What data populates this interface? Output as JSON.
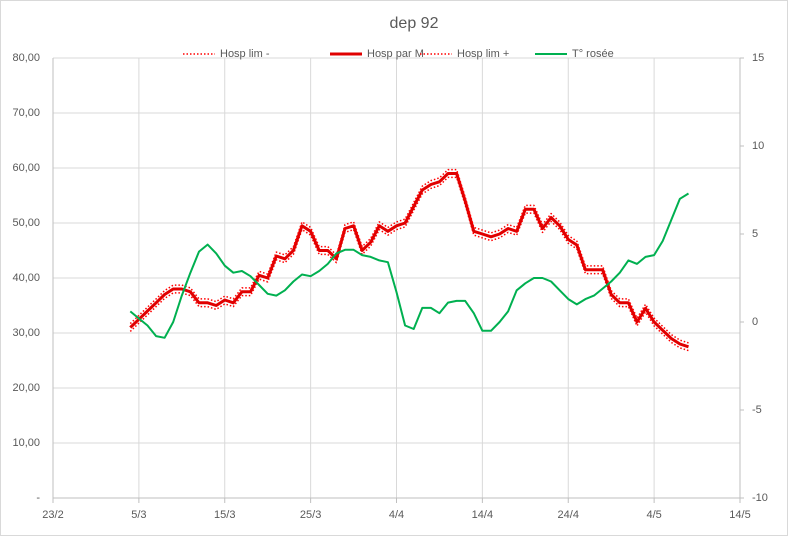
{
  "chart_data": {
    "type": "line",
    "title": "dep  92",
    "categories": [
      "23/2",
      null,
      null,
      null,
      null,
      null,
      null,
      null,
      null,
      null,
      "5/3",
      null,
      null,
      null,
      null,
      null,
      null,
      null,
      null,
      null,
      "15/3",
      null,
      null,
      null,
      null,
      null,
      null,
      null,
      null,
      null,
      "25/3",
      null,
      null,
      null,
      null,
      null,
      null,
      null,
      null,
      null,
      "4/4",
      null,
      null,
      null,
      null,
      null,
      null,
      null,
      null,
      null,
      "14/4",
      null,
      null,
      null,
      null,
      null,
      null,
      null,
      null,
      null,
      "24/4",
      null,
      null,
      null,
      null,
      null,
      null,
      null,
      null,
      null,
      "4/5",
      null,
      null,
      null,
      null,
      null,
      null,
      null,
      null,
      null,
      "14/5"
    ],
    "series": [
      {
        "name": "Hosp lim -",
        "color": "#ff0000",
        "style": "dotted",
        "values": [
          null,
          null,
          null,
          null,
          null,
          null,
          null,
          null,
          null,
          30.3,
          31.8,
          33.3,
          34.8,
          36.3,
          37.3,
          37.3,
          36.8,
          34.8,
          34.8,
          34.3,
          35.3,
          34.8,
          36.8,
          36.8,
          39.8,
          39.3,
          43.3,
          42.8,
          44.3,
          48.8,
          47.8,
          44.3,
          44.3,
          42.8,
          48.3,
          48.8,
          44.3,
          45.8,
          48.8,
          47.8,
          48.8,
          49.3,
          52.3,
          55.3,
          56.3,
          56.8,
          58.3,
          58.3,
          53.3,
          47.8,
          47.3,
          46.8,
          47.3,
          48.3,
          47.8,
          51.8,
          51.8,
          48.3,
          50.3,
          48.8,
          46.3,
          45.3,
          40.8,
          40.8,
          40.8,
          36.3,
          34.8,
          34.8,
          31.3,
          33.8,
          31.3,
          29.8,
          28.3,
          27.3,
          26.8,
          null,
          null,
          null,
          null,
          null,
          null
        ]
      },
      {
        "name": "Hosp par M",
        "color": "#e00000",
        "style": "solid",
        "values": [
          null,
          null,
          null,
          null,
          null,
          null,
          null,
          null,
          null,
          31,
          32.5,
          34,
          35.5,
          37,
          38,
          38,
          37.5,
          35.5,
          35.5,
          35,
          36,
          35.5,
          37.5,
          37.5,
          40.5,
          40,
          44,
          43.5,
          45,
          49.5,
          48.5,
          45,
          45,
          43.5,
          49,
          49.5,
          45,
          46.5,
          49.5,
          48.5,
          49.5,
          50,
          53,
          56,
          57,
          57.5,
          59,
          59,
          54,
          48.5,
          48,
          47.5,
          48,
          49,
          48.5,
          52.5,
          52.5,
          49,
          51,
          49.5,
          47,
          46,
          41.5,
          41.5,
          41.5,
          37,
          35.5,
          35.5,
          32,
          34.5,
          32,
          30.5,
          29,
          28,
          27.5,
          null,
          null,
          null,
          null,
          null,
          null
        ]
      },
      {
        "name": "Hosp lim +",
        "color": "#ff0000",
        "style": "dotted",
        "values": [
          null,
          null,
          null,
          null,
          null,
          null,
          null,
          null,
          null,
          31.7,
          33.2,
          34.7,
          36.2,
          37.7,
          38.7,
          38.7,
          38.2,
          36.2,
          36.2,
          35.7,
          36.7,
          36.2,
          38.2,
          38.2,
          41.2,
          40.7,
          44.7,
          44.2,
          45.7,
          50.2,
          49.2,
          45.7,
          45.7,
          44.2,
          49.7,
          50.2,
          45.7,
          47.2,
          50.2,
          49.2,
          50.2,
          50.7,
          53.7,
          56.7,
          57.7,
          58.2,
          59.7,
          59.7,
          54.7,
          49.2,
          48.7,
          48.2,
          48.7,
          49.7,
          49.2,
          53.2,
          53.2,
          49.7,
          51.7,
          50.2,
          47.7,
          46.7,
          42.2,
          42.2,
          42.2,
          37.7,
          36.2,
          36.2,
          32.7,
          35.2,
          32.7,
          31.2,
          29.7,
          28.7,
          28.2,
          null,
          null,
          null,
          null,
          null,
          null
        ]
      },
      {
        "name": "T° rosée",
        "color": "#00b050",
        "style": "solid",
        "axis": "y2",
        "values": [
          null,
          null,
          null,
          null,
          null,
          null,
          null,
          null,
          null,
          0.6,
          0.2,
          -0.2,
          -0.8,
          -0.9,
          0,
          1.5,
          2.8,
          4,
          4.4,
          3.9,
          3.2,
          2.8,
          2.9,
          2.6,
          2.1,
          1.6,
          1.5,
          1.8,
          2.3,
          2.7,
          2.6,
          2.9,
          3.3,
          3.9,
          4.1,
          4.1,
          3.8,
          3.7,
          3.5,
          3.4,
          1.7,
          -0.2,
          -0.4,
          0.8,
          0.8,
          0.5,
          1.1,
          1.2,
          1.2,
          0.5,
          -0.5,
          -0.5,
          0,
          0.6,
          1.8,
          2.2,
          2.5,
          2.5,
          2.3,
          1.8,
          1.3,
          1,
          1.3,
          1.5,
          1.9,
          2.3,
          2.8,
          3.5,
          3.3,
          3.7,
          3.8,
          4.6,
          5.8,
          7,
          7.3,
          null,
          null,
          null,
          null,
          null,
          null
        ]
      }
    ],
    "ylim": [
      0,
      80
    ],
    "yticks": [
      {
        "value": 0,
        "label": "-"
      },
      {
        "value": 10,
        "label": "10,00"
      },
      {
        "value": 20,
        "label": "20,00"
      },
      {
        "value": 30,
        "label": "30,00"
      },
      {
        "value": 40,
        "label": "40,00"
      },
      {
        "value": 50,
        "label": "50,00"
      },
      {
        "value": 60,
        "label": "60,00"
      },
      {
        "value": 70,
        "label": "70,00"
      },
      {
        "value": 80,
        "label": "80,00"
      }
    ],
    "y2lim": [
      -10,
      15
    ],
    "y2ticks": [
      -10,
      -5,
      0,
      5,
      10,
      15
    ],
    "grid": true,
    "legend": "top"
  }
}
